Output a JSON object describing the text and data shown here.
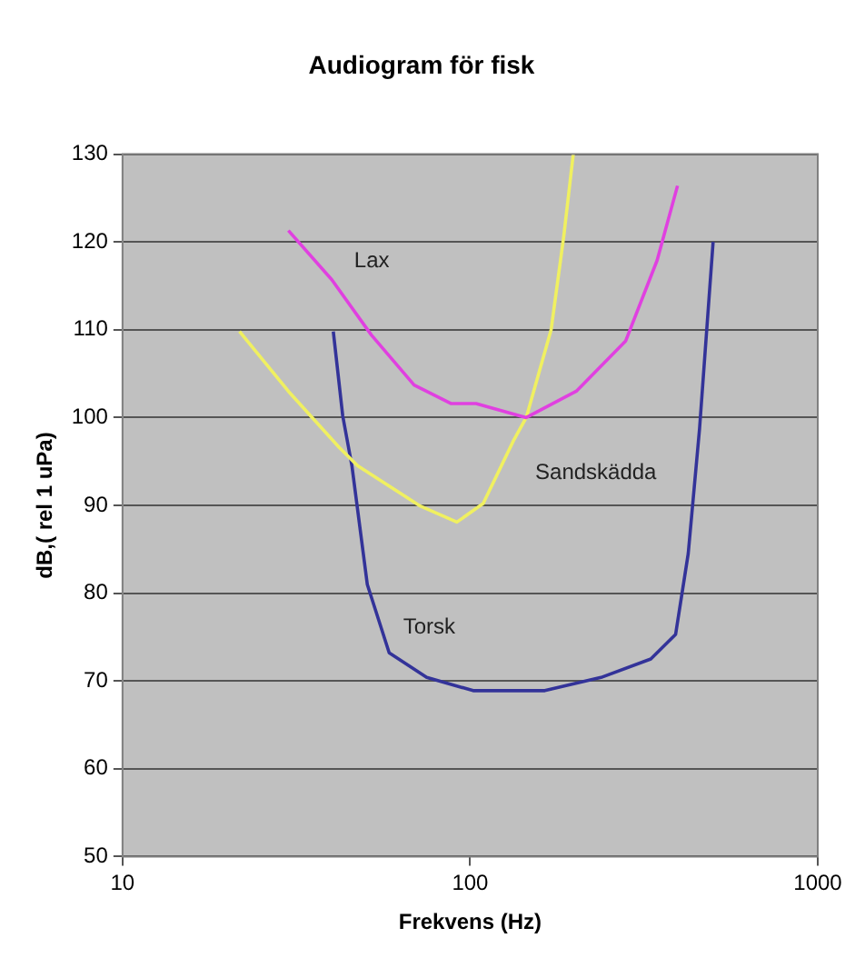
{
  "chart_data": {
    "type": "line",
    "title": "Audiogram för fisk",
    "xlabel": "Frekvens (Hz)",
    "ylabel": "dB,( rel 1 uPa)",
    "log": "x",
    "xlim": [
      10,
      1000
    ],
    "xticks": [
      10,
      100,
      1000
    ],
    "ylim": [
      50,
      130
    ],
    "yticks": [
      50,
      60,
      70,
      80,
      90,
      100,
      110,
      120,
      130
    ],
    "grid": "y",
    "legend": false,
    "marker": "none",
    "line_style": "solid",
    "series": [
      {
        "name": "Lax",
        "color": "#e040e0",
        "x": [
          30,
          40,
          52,
          69,
          88,
          104,
          145,
          202,
          280,
          345,
          395
        ],
        "values": [
          121.3,
          115.7,
          109.4,
          103.7,
          101.6,
          101.6,
          100,
          103,
          108.7,
          117.9,
          126.4
        ]
      },
      {
        "name": "Sandskädda",
        "color": "#f0f060",
        "x": [
          21.7,
          30,
          42,
          47.5,
          72,
          91.6,
          109,
          133,
          145,
          171,
          186,
          198
        ],
        "values": [
          109.8,
          103,
          96.6,
          94.5,
          89.9,
          88.1,
          90.2,
          97.3,
          100,
          110,
          120.7,
          130
        ]
      },
      {
        "name": "Torsk",
        "color": "#333399",
        "x": [
          40.4,
          43,
          45.7,
          50.6,
          58.5,
          75,
          102,
          164,
          238,
          331,
          390,
          424,
          457,
          500
        ],
        "values": [
          109.8,
          100.2,
          94.5,
          81,
          73.2,
          70.4,
          68.9,
          68.9,
          70.4,
          72.5,
          75.3,
          84.5,
          98.7,
          120
        ]
      }
    ]
  }
}
